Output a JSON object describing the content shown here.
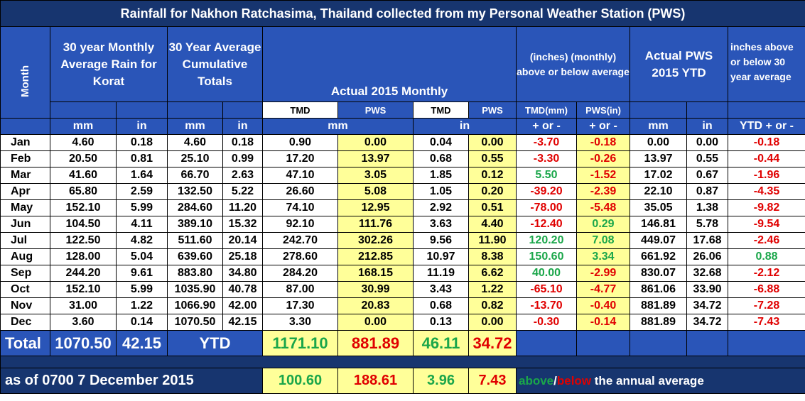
{
  "title": "Rainfall for Nakhon Ratchasima, Thailand collected from my Personal Weather Station (PWS)",
  "headers": {
    "month": "Month",
    "avg_monthly": "30 year Monthly Average Rain for Korat",
    "avg_cumulative": "30 Year Average Cumulative Totals",
    "actual_monthly": "Actual 2015 Monthly",
    "above_below": "(inches) (monthly) above or below average",
    "actual_ytd": "Actual PWS 2015 YTD",
    "inches_above": "inches above or below 30 year average"
  },
  "subheaders": [
    "TMD",
    "PWS",
    "TMD",
    "PWS",
    "TMD(mm)",
    "PWS(in)"
  ],
  "units": {
    "avg_mm": "mm",
    "avg_in": "in",
    "cum_mm": "mm",
    "cum_in": "in",
    "act_mm": "mm",
    "act_in": "in",
    "diff_tmd": "+ or -",
    "diff_pws": "+ or -",
    "ytd_mm": "mm",
    "ytd_in": "in",
    "ytd_diff": "YTD + or -"
  },
  "rows": [
    {
      "m": "Jan",
      "avg_mm": "4.60",
      "avg_in": "0.18",
      "cum_mm": "4.60",
      "cum_in": "0.18",
      "tmd_mm": "0.90",
      "pws_mm": "0.00",
      "tmd_in": "0.04",
      "pws_in": "0.00",
      "d_tmd": "-3.70",
      "d_pws": "-0.18",
      "ytd_mm": "0.00",
      "ytd_in": "0.00",
      "ytd_d": "-0.18"
    },
    {
      "m": "Feb",
      "avg_mm": "20.50",
      "avg_in": "0.81",
      "cum_mm": "25.10",
      "cum_in": "0.99",
      "tmd_mm": "17.20",
      "pws_mm": "13.97",
      "tmd_in": "0.68",
      "pws_in": "0.55",
      "d_tmd": "-3.30",
      "d_pws": "-0.26",
      "ytd_mm": "13.97",
      "ytd_in": "0.55",
      "ytd_d": "-0.44"
    },
    {
      "m": "Mar",
      "avg_mm": "41.60",
      "avg_in": "1.64",
      "cum_mm": "66.70",
      "cum_in": "2.63",
      "tmd_mm": "47.10",
      "pws_mm": "3.05",
      "tmd_in": "1.85",
      "pws_in": "0.12",
      "d_tmd": "5.50",
      "d_pws": "-1.52",
      "ytd_mm": "17.02",
      "ytd_in": "0.67",
      "ytd_d": "-1.96"
    },
    {
      "m": "Apr",
      "avg_mm": "65.80",
      "avg_in": "2.59",
      "cum_mm": "132.50",
      "cum_in": "5.22",
      "tmd_mm": "26.60",
      "pws_mm": "5.08",
      "tmd_in": "1.05",
      "pws_in": "0.20",
      "d_tmd": "-39.20",
      "d_pws": "-2.39",
      "ytd_mm": "22.10",
      "ytd_in": "0.87",
      "ytd_d": "-4.35"
    },
    {
      "m": "May",
      "avg_mm": "152.10",
      "avg_in": "5.99",
      "cum_mm": "284.60",
      "cum_in": "11.20",
      "tmd_mm": "74.10",
      "pws_mm": "12.95",
      "tmd_in": "2.92",
      "pws_in": "0.51",
      "d_tmd": "-78.00",
      "d_pws": "-5.48",
      "ytd_mm": "35.05",
      "ytd_in": "1.38",
      "ytd_d": "-9.82"
    },
    {
      "m": "Jun",
      "avg_mm": "104.50",
      "avg_in": "4.11",
      "cum_mm": "389.10",
      "cum_in": "15.32",
      "tmd_mm": "92.10",
      "pws_mm": "111.76",
      "tmd_in": "3.63",
      "pws_in": "4.40",
      "d_tmd": "-12.40",
      "d_pws": "0.29",
      "ytd_mm": "146.81",
      "ytd_in": "5.78",
      "ytd_d": "-9.54"
    },
    {
      "m": "Jul",
      "avg_mm": "122.50",
      "avg_in": "4.82",
      "cum_mm": "511.60",
      "cum_in": "20.14",
      "tmd_mm": "242.70",
      "pws_mm": "302.26",
      "tmd_in": "9.56",
      "pws_in": "11.90",
      "d_tmd": "120.20",
      "d_pws": "7.08",
      "ytd_mm": "449.07",
      "ytd_in": "17.68",
      "ytd_d": "-2.46"
    },
    {
      "m": "Aug",
      "avg_mm": "128.00",
      "avg_in": "5.04",
      "cum_mm": "639.60",
      "cum_in": "25.18",
      "tmd_mm": "278.60",
      "pws_mm": "212.85",
      "tmd_in": "10.97",
      "pws_in": "8.38",
      "d_tmd": "150.60",
      "d_pws": "3.34",
      "ytd_mm": "661.92",
      "ytd_in": "26.06",
      "ytd_d": "0.88"
    },
    {
      "m": "Sep",
      "avg_mm": "244.20",
      "avg_in": "9.61",
      "cum_mm": "883.80",
      "cum_in": "34.80",
      "tmd_mm": "284.20",
      "pws_mm": "168.15",
      "tmd_in": "11.19",
      "pws_in": "6.62",
      "d_tmd": "40.00",
      "d_pws": "-2.99",
      "ytd_mm": "830.07",
      "ytd_in": "32.68",
      "ytd_d": "-2.12"
    },
    {
      "m": "Oct",
      "avg_mm": "152.10",
      "avg_in": "5.99",
      "cum_mm": "1035.90",
      "cum_in": "40.78",
      "tmd_mm": "87.00",
      "pws_mm": "30.99",
      "tmd_in": "3.43",
      "pws_in": "1.22",
      "d_tmd": "-65.10",
      "d_pws": "-4.77",
      "ytd_mm": "861.06",
      "ytd_in": "33.90",
      "ytd_d": "-6.88"
    },
    {
      "m": "Nov",
      "avg_mm": "31.00",
      "avg_in": "1.22",
      "cum_mm": "1066.90",
      "cum_in": "42.00",
      "tmd_mm": "17.30",
      "pws_mm": "20.83",
      "tmd_in": "0.68",
      "pws_in": "0.82",
      "d_tmd": "-13.70",
      "d_pws": "-0.40",
      "ytd_mm": "881.89",
      "ytd_in": "34.72",
      "ytd_d": "-7.28"
    },
    {
      "m": "Dec",
      "avg_mm": "3.60",
      "avg_in": "0.14",
      "cum_mm": "1070.50",
      "cum_in": "42.15",
      "tmd_mm": "3.30",
      "pws_mm": "0.00",
      "tmd_in": "0.13",
      "pws_in": "0.00",
      "d_tmd": "-0.30",
      "d_pws": "-0.14",
      "ytd_mm": "881.89",
      "ytd_in": "34.72",
      "ytd_d": "-7.43"
    }
  ],
  "totals": {
    "label": "Total",
    "avg_mm": "1070.50",
    "avg_in": "42.15",
    "ytd_label": "YTD",
    "tmd_mm": "1171.10",
    "pws_mm": "881.89",
    "tmd_in": "46.11",
    "pws_in": "34.72"
  },
  "footer": {
    "asof": "as of 0700 7 December 2015",
    "tmd_mm": "100.60",
    "pws_mm": "188.61",
    "tmd_in": "3.96",
    "pws_in": "7.43",
    "note_above": "above",
    "note_slash": "/",
    "note_below": "below",
    "note_rest": " the annual average"
  },
  "colors": {
    "header_blue": "#2a55b8",
    "dark_navy": "#17356f",
    "yellow": "#ffff99",
    "negative": "#e00000",
    "positive": "#1aa64a"
  }
}
